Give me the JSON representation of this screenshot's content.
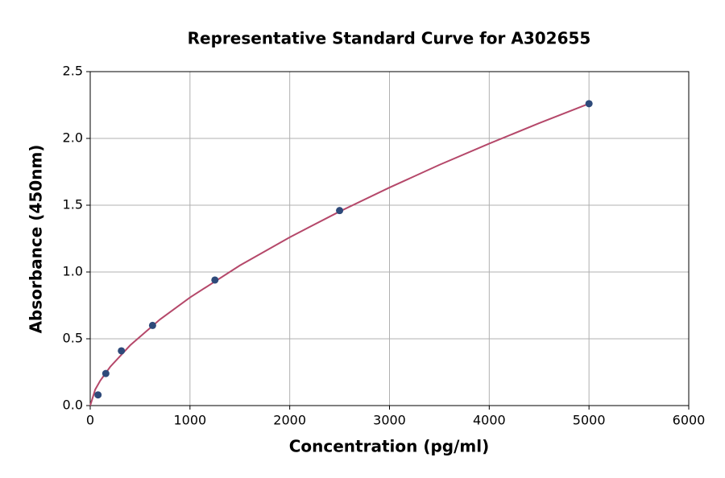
{
  "chart_data": {
    "type": "scatter",
    "title": "Representative Standard Curve for A302655",
    "x_label": "Concentration (pg/ml)",
    "y_label": "Absorbance (450nm)",
    "x": [
      78.125,
      156.25,
      312.5,
      625,
      1250,
      2500,
      5000
    ],
    "values": [
      0.08,
      0.24,
      0.41,
      0.6,
      0.94,
      1.46,
      2.26
    ],
    "color": "#2e4a7a",
    "curve": {
      "x": [
        0,
        50,
        100,
        200,
        400,
        700,
        1000,
        1500,
        2000,
        2500,
        3000,
        3500,
        4000,
        4500,
        5000
      ],
      "y": [
        0,
        0.12,
        0.186,
        0.29,
        0.451,
        0.645,
        0.809,
        1.049,
        1.26,
        1.453,
        1.632,
        1.802,
        1.961,
        2.114,
        2.26
      ],
      "color": "#b5486a"
    },
    "xlim": [
      0,
      6000
    ],
    "xticks": [
      0,
      1000,
      2000,
      3000,
      4000,
      5000,
      6000
    ],
    "ylim": [
      0,
      2.5
    ],
    "yticks": [
      {
        "value": 0,
        "label": "0.0"
      },
      0.5,
      {
        "value": 1,
        "label": "1.0"
      },
      1.5,
      {
        "value": 2,
        "label": "2.0"
      },
      2.5
    ],
    "grid": true
  }
}
